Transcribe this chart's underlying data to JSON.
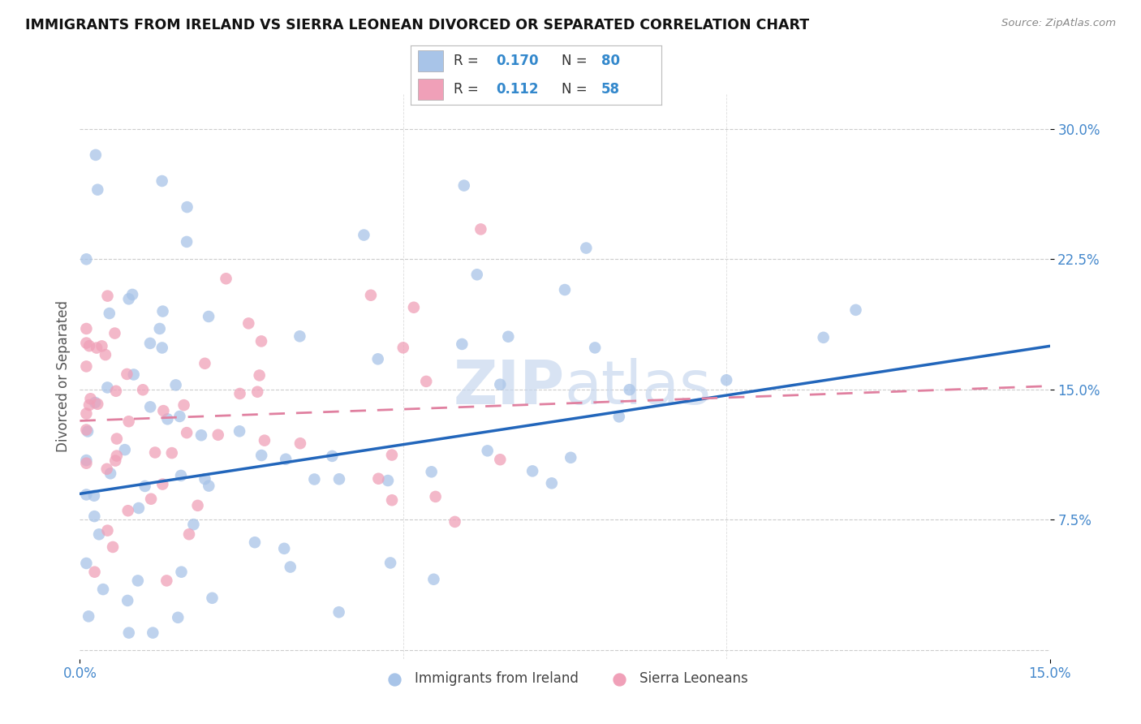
{
  "title": "IMMIGRANTS FROM IRELAND VS SIERRA LEONEAN DIVORCED OR SEPARATED CORRELATION CHART",
  "source": "Source: ZipAtlas.com",
  "ylabel": "Divorced or Separated",
  "ytick_vals": [
    0.075,
    0.15,
    0.225,
    0.3
  ],
  "ytick_labels": [
    "7.5%",
    "15.0%",
    "22.5%",
    "30.0%"
  ],
  "xlim": [
    0.0,
    0.15
  ],
  "ylim": [
    -0.005,
    0.32
  ],
  "color_blue": "#a8c4e8",
  "color_pink": "#f0a0b8",
  "color_line_blue": "#2266bb",
  "color_line_pink": "#e080a0",
  "color_axis_ticks": "#4488cc",
  "watermark_color": "#c8d8ee",
  "legend_text_color": "#333333",
  "legend_val_color": "#3388cc",
  "ireland_line_y0": 0.09,
  "ireland_line_y1": 0.175,
  "sierra_line_y0": 0.132,
  "sierra_line_y1": 0.152
}
